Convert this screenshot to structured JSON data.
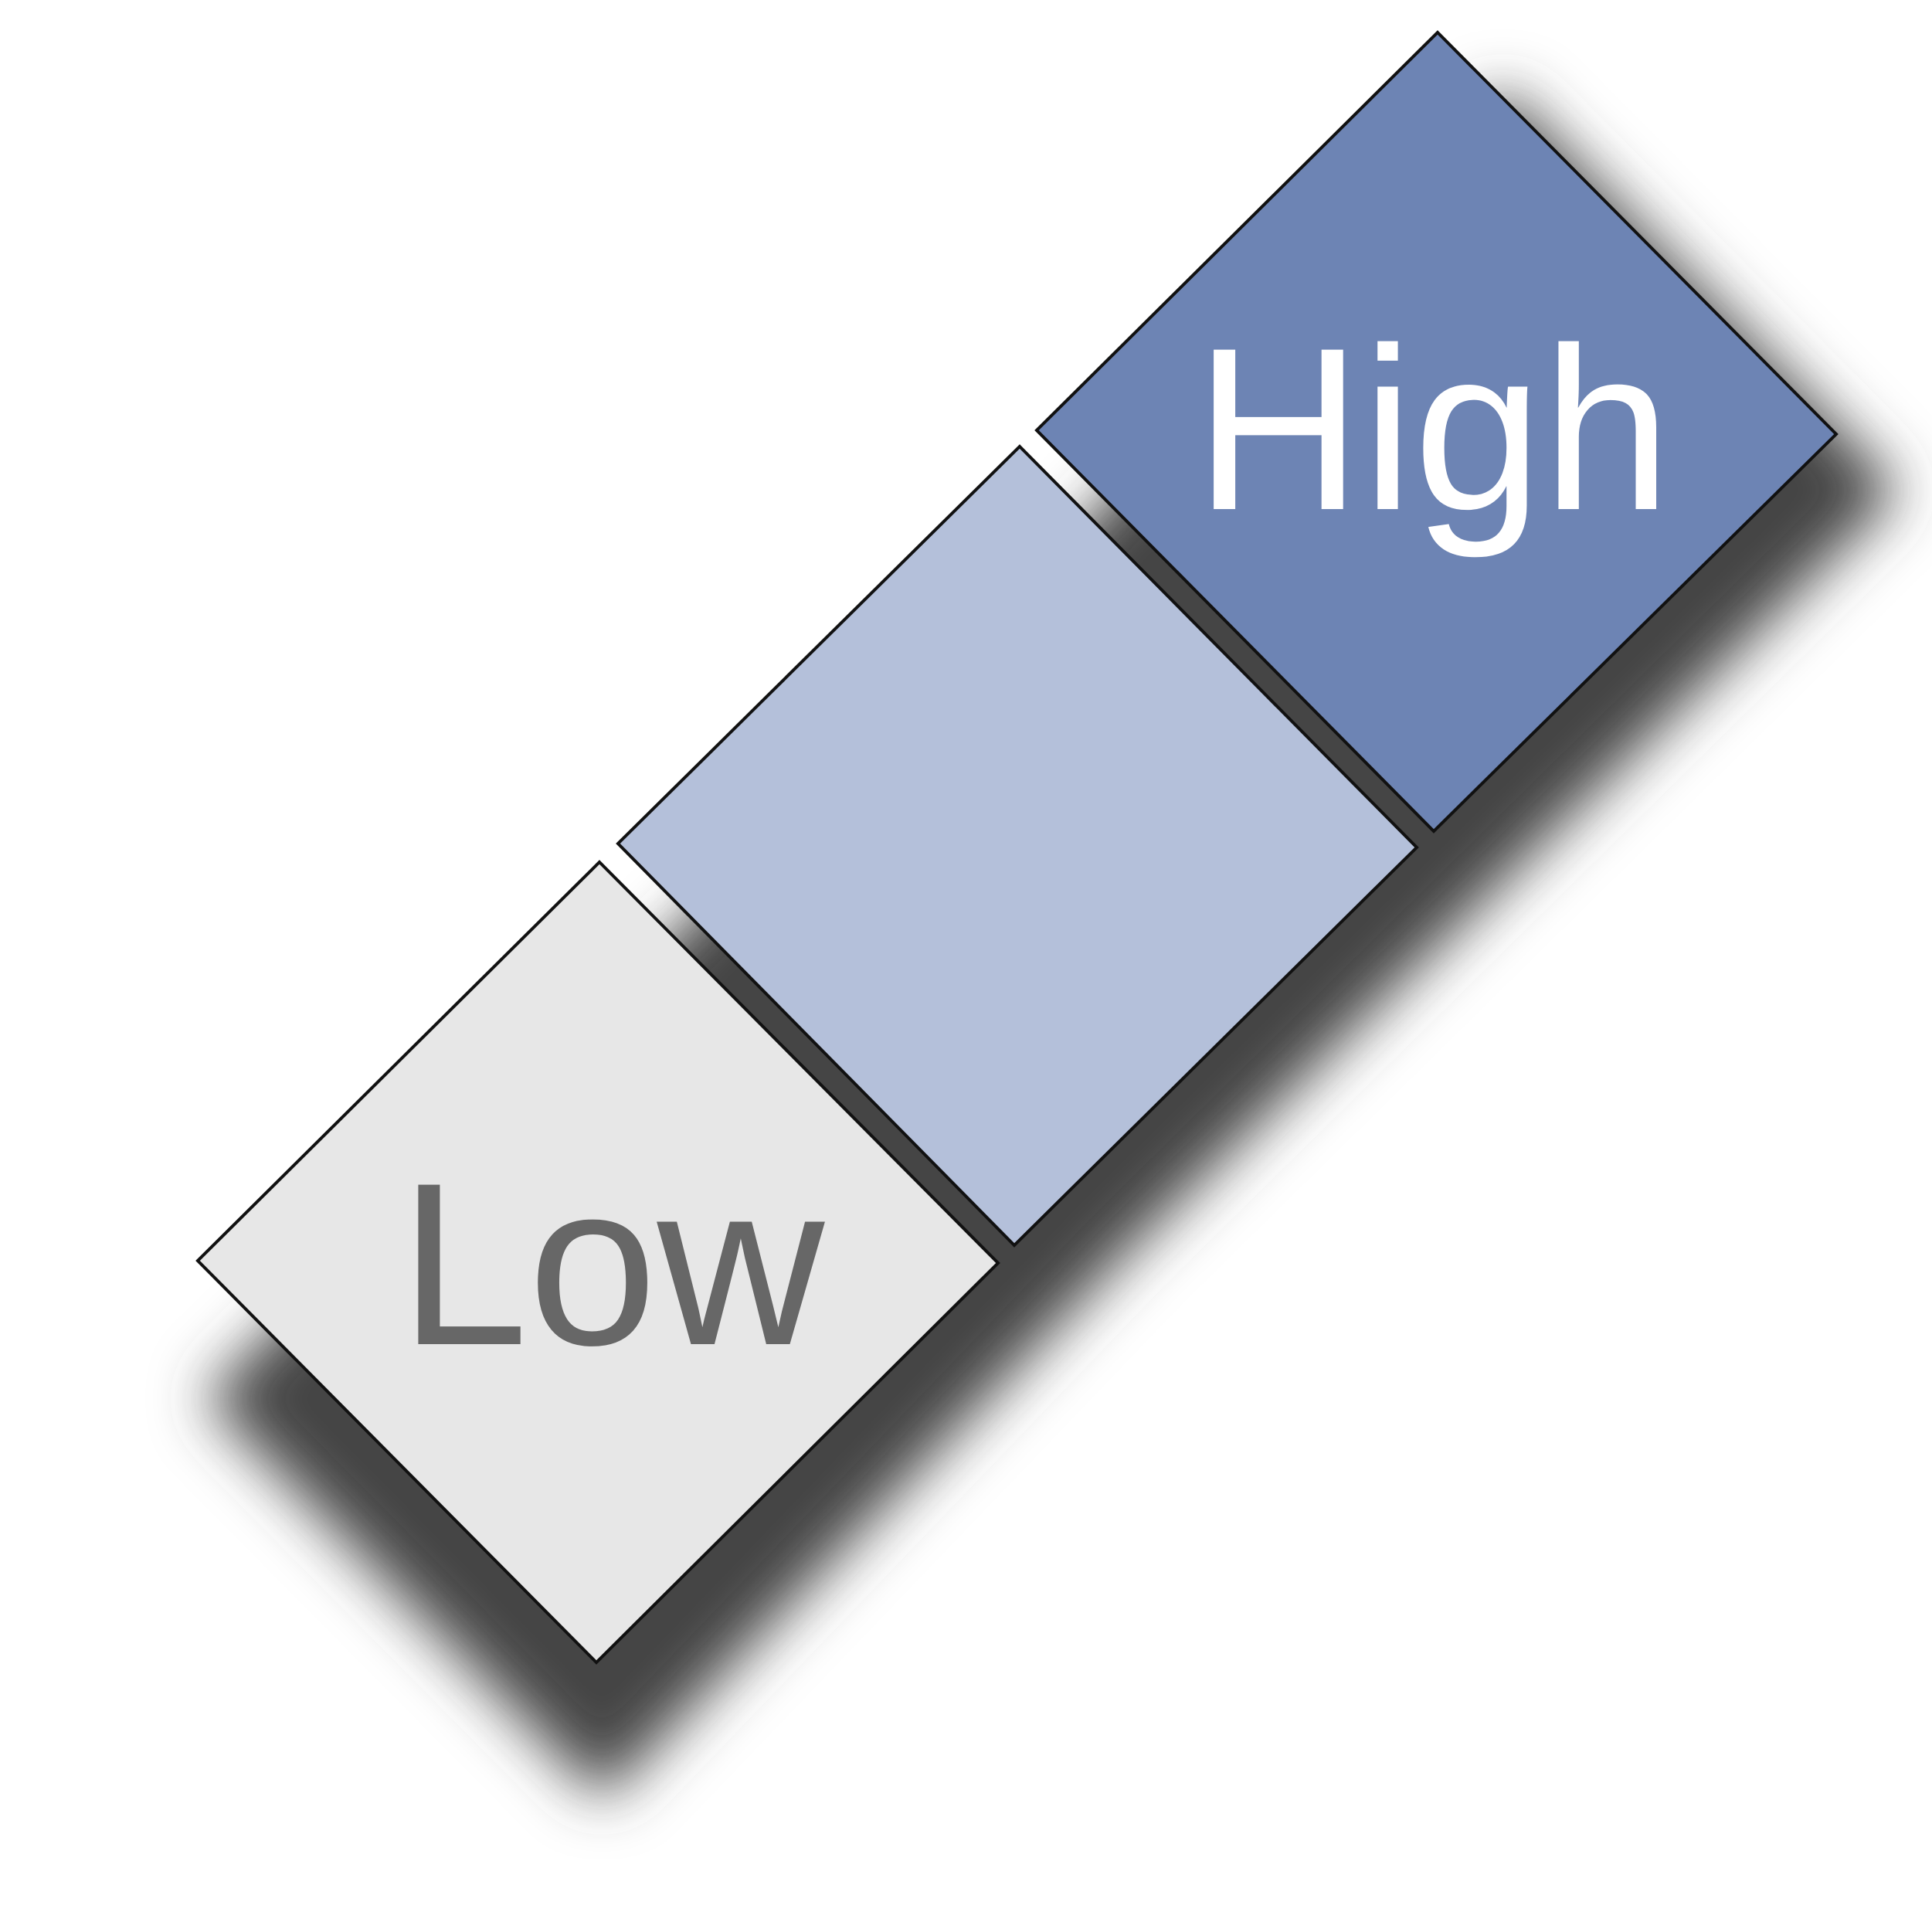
{
  "legend": {
    "low": {
      "label": "Low",
      "fill": "#e7e7e7",
      "text_color": "#676767"
    },
    "mid": {
      "label": "",
      "fill": "#b4c0da"
    },
    "high": {
      "label": "High",
      "fill": "#6d84b4",
      "text_color": "#ffffff"
    },
    "stroke": "#111111",
    "shadow_color": "#444444"
  }
}
